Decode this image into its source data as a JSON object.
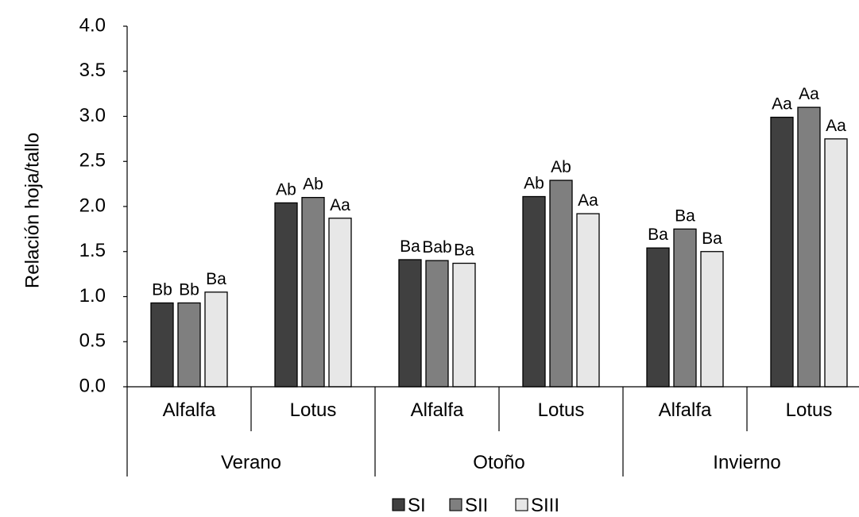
{
  "chart_data": {
    "type": "bar",
    "ylabel": "Relación hoja/tallo",
    "ylim": [
      0,
      4
    ],
    "yticks": [
      "0.0",
      "0.5",
      "1.0",
      "1.5",
      "2.0",
      "2.5",
      "3.0",
      "3.5",
      "4.0"
    ],
    "grid": false,
    "legend_position": "bottom",
    "groups": [
      {
        "label": "Verano",
        "categories": [
          "Alfalfa",
          "Lotus"
        ]
      },
      {
        "label": "Otoño",
        "categories": [
          "Alfalfa",
          "Lotus"
        ]
      },
      {
        "label": "Invierno",
        "categories": [
          "Alfalfa",
          "Lotus"
        ]
      }
    ],
    "categories": [
      "Alfalfa",
      "Lotus",
      "Alfalfa",
      "Lotus",
      "Alfalfa",
      "Lotus"
    ],
    "series": [
      {
        "name": "SI",
        "color": "#404040",
        "values": [
          0.93,
          2.04,
          1.41,
          2.11,
          1.54,
          2.99
        ],
        "labels": [
          "Bb",
          "Ab",
          "Ba",
          "Ab",
          "Ba",
          "Aa"
        ]
      },
      {
        "name": "SII",
        "color": "#7f7f7f",
        "values": [
          0.93,
          2.1,
          1.4,
          2.29,
          1.75,
          3.1
        ],
        "labels": [
          "Bb",
          "Ab",
          "Bab",
          "Ab",
          "Ba",
          "Aa"
        ]
      },
      {
        "name": "SIII",
        "color": "#e7e7e7",
        "values": [
          1.05,
          1.87,
          1.37,
          1.92,
          1.5,
          2.75
        ],
        "labels": [
          "Ba",
          "Aa",
          "Ba",
          "Aa",
          "Ba",
          "Aa"
        ]
      }
    ]
  }
}
